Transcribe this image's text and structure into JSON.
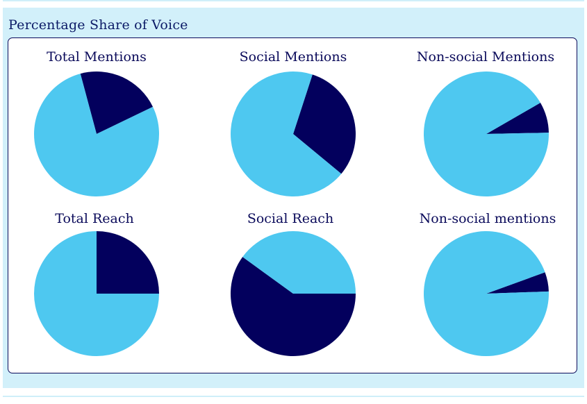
{
  "header": {
    "title": "Percentage Share of Voice"
  },
  "colors": {
    "primary": "#03005d",
    "secondary": "#4ec8f0",
    "panel_bg": "#d2f0fa",
    "card_border": "#0a0a5a"
  },
  "chart_data": [
    {
      "type": "pie",
      "title": "Total Mentions",
      "slices": [
        {
          "value": 22
        },
        {
          "value": 78
        }
      ]
    },
    {
      "type": "pie",
      "title": "Social Mentions",
      "slices": [
        {
          "value": 31
        },
        {
          "value": 69
        }
      ]
    },
    {
      "type": "pie",
      "title": "Non-social Mentions",
      "slices": [
        {
          "value": 8
        },
        {
          "value": 92
        }
      ]
    },
    {
      "type": "pie",
      "title": "Total Reach",
      "slices": [
        {
          "value": 25
        },
        {
          "value": 75
        }
      ]
    },
    {
      "type": "pie",
      "title": "Social Reach",
      "slices": [
        {
          "value": 60
        },
        {
          "value": 40
        }
      ]
    },
    {
      "type": "pie",
      "title": "Non-social mentions",
      "slices": [
        {
          "value": 5
        },
        {
          "value": 95
        }
      ]
    }
  ]
}
